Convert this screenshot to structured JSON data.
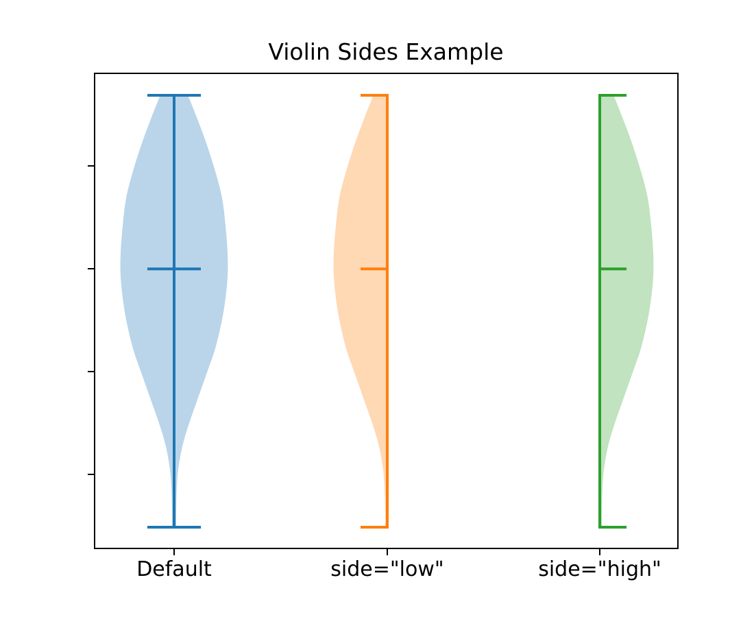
{
  "figure": {
    "background": "#ffffff",
    "spine_color": "#000000",
    "tick_color": "#000000"
  },
  "chart_data": {
    "type": "violin",
    "title": "Violin Sides Example",
    "xlabel": "",
    "ylabel": "",
    "categories": [
      "Default",
      "side=\"low\"",
      "side=\"high\""
    ],
    "grid": false,
    "legend": null,
    "y_axis": {
      "tick_labels": "none",
      "num_ticks": 4
    },
    "series": [
      {
        "key": "default",
        "name": "Default",
        "side": "both",
        "line_color": "#1f77b4",
        "fill_color": "#bad5e9",
        "median_t": 0.402,
        "whisker_span": [
          0,
          1
        ]
      },
      {
        "key": "side-low",
        "name": "side=\"low\"",
        "side": "low",
        "line_color": "#ff7f0e",
        "fill_color": "#ffd8b4",
        "median_t": 0.402,
        "whisker_span": [
          0,
          1
        ]
      },
      {
        "key": "side-high",
        "name": "side=\"high\"",
        "side": "high",
        "line_color": "#2ca02c",
        "fill_color": "#c1e3c0",
        "median_t": 0.402,
        "whisker_span": [
          0,
          1
        ]
      }
    ],
    "profile": [
      [
        0.0,
        0.26
      ],
      [
        0.05,
        0.42
      ],
      [
        0.11,
        0.6
      ],
      [
        0.18,
        0.78
      ],
      [
        0.24,
        0.9
      ],
      [
        0.3,
        0.96
      ],
      [
        0.365,
        1.0
      ],
      [
        0.42,
        1.0
      ],
      [
        0.48,
        0.95
      ],
      [
        0.53,
        0.88
      ],
      [
        0.59,
        0.76
      ],
      [
        0.64,
        0.62
      ],
      [
        0.7,
        0.45
      ],
      [
        0.76,
        0.28
      ],
      [
        0.81,
        0.16
      ],
      [
        0.86,
        0.085
      ],
      [
        0.9,
        0.055
      ],
      [
        0.95,
        0.042
      ],
      [
        1.0,
        0.038
      ]
    ]
  }
}
